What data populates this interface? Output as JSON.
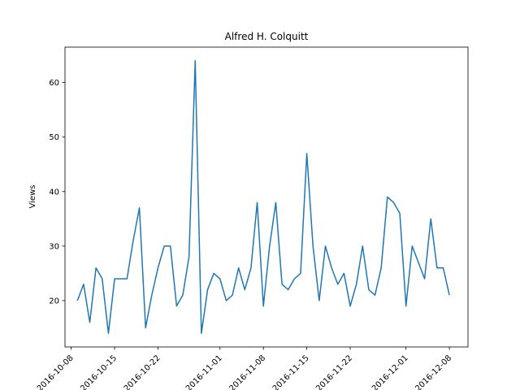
{
  "chart_data": {
    "type": "line",
    "title": "Alfred H. Colquitt",
    "xlabel": "",
    "ylabel": "Views",
    "x_tick_labels": [
      {
        "date": "2016-10-08",
        "label": "2016-10-08"
      },
      {
        "date": "2016-10-15",
        "label": "2016-10-15"
      },
      {
        "date": "2016-10-22",
        "label": "2016-10-22"
      },
      {
        "date": "2016-11-01",
        "label": "2016-11-01"
      },
      {
        "date": "2016-11-08",
        "label": "2016-11-08"
      },
      {
        "date": "2016-11-15",
        "label": "2016-11-15"
      },
      {
        "date": "2016-11-22",
        "label": "2016-11-22"
      },
      {
        "date": "2016-12-01",
        "label": "2016-12-01"
      },
      {
        "date": "2016-12-08",
        "label": "2016-12-08"
      }
    ],
    "y_ticks": [
      20,
      30,
      40,
      50,
      60
    ],
    "ylim": [
      11.5,
      66.5
    ],
    "xlim": [
      "2016-10-07",
      "2016-12-11"
    ],
    "grid": false,
    "series": [
      {
        "color": "#1f77b4",
        "x": [
          "2016-10-09",
          "2016-10-10",
          "2016-10-11",
          "2016-10-12",
          "2016-10-13",
          "2016-10-14",
          "2016-10-15",
          "2016-10-16",
          "2016-10-17",
          "2016-10-18",
          "2016-10-19",
          "2016-10-20",
          "2016-10-21",
          "2016-10-22",
          "2016-10-23",
          "2016-10-24",
          "2016-10-25",
          "2016-10-26",
          "2016-10-27",
          "2016-10-28",
          "2016-10-29",
          "2016-10-30",
          "2016-10-31",
          "2016-11-01",
          "2016-11-02",
          "2016-11-03",
          "2016-11-04",
          "2016-11-05",
          "2016-11-06",
          "2016-11-07",
          "2016-11-08",
          "2016-11-09",
          "2016-11-10",
          "2016-11-11",
          "2016-11-12",
          "2016-11-13",
          "2016-11-14",
          "2016-11-15",
          "2016-11-16",
          "2016-11-17",
          "2016-11-18",
          "2016-11-19",
          "2016-11-20",
          "2016-11-21",
          "2016-11-22",
          "2016-11-23",
          "2016-11-24",
          "2016-11-25",
          "2016-11-26",
          "2016-11-27",
          "2016-11-28",
          "2016-11-29",
          "2016-11-30",
          "2016-12-01",
          "2016-12-02",
          "2016-12-03",
          "2016-12-04",
          "2016-12-05",
          "2016-12-06",
          "2016-12-07",
          "2016-12-08"
        ],
        "values": [
          20,
          23,
          16,
          26,
          24,
          14,
          24,
          24,
          24,
          31,
          37,
          15,
          21,
          26,
          30,
          30,
          19,
          21,
          28,
          64,
          14,
          22,
          25,
          24,
          20,
          21,
          26,
          22,
          26,
          38,
          19,
          30,
          38,
          23,
          22,
          24,
          25,
          47,
          30,
          20,
          30,
          26,
          23,
          25,
          19,
          23,
          30,
          22,
          21,
          26,
          39,
          38,
          36,
          19,
          30,
          27,
          24,
          35,
          26,
          26,
          21
        ]
      }
    ]
  }
}
